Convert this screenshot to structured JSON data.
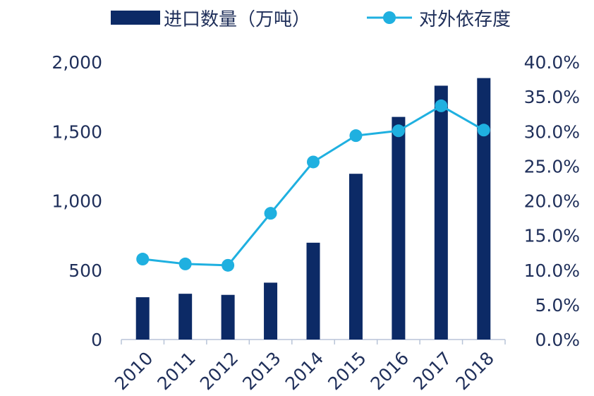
{
  "chart_data": {
    "type": "bar",
    "categories": [
      "2010",
      "2011",
      "2012",
      "2013",
      "2014",
      "2015",
      "2016",
      "2017",
      "2018"
    ],
    "series": [
      {
        "name": "进口数量（万吨）",
        "type": "bar",
        "axis": "left",
        "color": "#0c2a66",
        "values": [
          305,
          330,
          322,
          410,
          698,
          1195,
          1605,
          1830,
          1885
        ]
      },
      {
        "name": "对外依存度",
        "type": "line",
        "axis": "right",
        "color": "#1fb0e0",
        "values": [
          11.6,
          10.9,
          10.7,
          18.2,
          25.6,
          29.4,
          30.1,
          33.7,
          30.2
        ]
      }
    ],
    "y_left": {
      "range": [
        0,
        2000
      ],
      "ticks": [
        0,
        500,
        1000,
        1500,
        2000
      ],
      "tick_labels": [
        "0",
        "500",
        "1,000",
        "1,500",
        "2,000"
      ]
    },
    "y_right": {
      "range": [
        0,
        40
      ],
      "ticks": [
        0,
        5,
        10,
        15,
        20,
        25,
        30,
        35,
        40
      ],
      "tick_labels": [
        "0.0%",
        "5.0%",
        "10.0%",
        "15.0%",
        "20.0%",
        "25.0%",
        "30.0%",
        "35.0%",
        "40.0%"
      ]
    },
    "x_tick_rotation": "rotated",
    "grid": false,
    "legend_position": "top",
    "title": "",
    "xlabel": "",
    "ylabel": ""
  }
}
